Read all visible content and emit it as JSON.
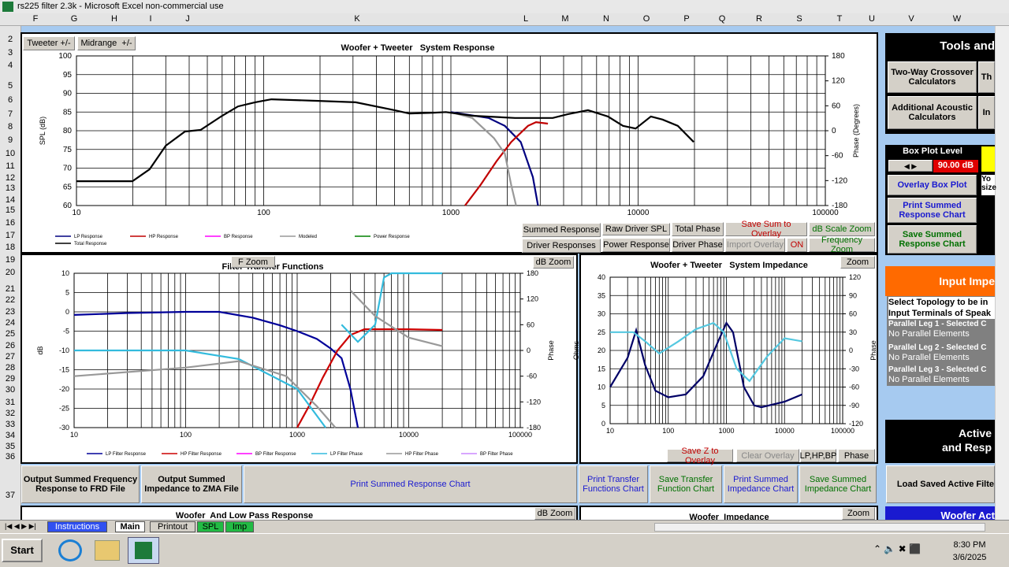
{
  "window": {
    "title": "rs225 filter  2.3k - Microsoft Excel non-commercial use"
  },
  "columns": [
    "F",
    "G",
    "H",
    "I",
    "J",
    "K",
    "L",
    "M",
    "N",
    "O",
    "P",
    "Q",
    "R",
    "S",
    "T",
    "U",
    "V",
    "W"
  ],
  "rows": [
    "2",
    "3",
    "4",
    "5",
    "6",
    "7",
    "8",
    "9",
    "10",
    "11",
    "12",
    "13",
    "14",
    "15",
    "16",
    "17",
    "18",
    "19",
    "20",
    "21",
    "22",
    "23",
    "24",
    "25",
    "26",
    "27",
    "28",
    "29",
    "30",
    "31",
    "32",
    "33",
    "34",
    "35",
    "36",
    "37"
  ],
  "buttons": {
    "tweeter": "Tweeter +/-",
    "midrange": "Midrange  +/-",
    "summed_response": "Summed Response",
    "raw_driver_spl": "Raw Driver SPL",
    "total_phase": "Total Phase",
    "save_sum": "Save Sum to Overlay",
    "db_scale_zoom": "dB Scale Zoom",
    "driver_responses": "Driver Responses",
    "power_response": "Power Response",
    "driver_phase": "Driver Phase",
    "import_overlay": "Import Overlay",
    "on": "ON",
    "frequency_zoom": "Frequency Zoom",
    "f_zoom": "F Zoom",
    "db_zoom": "dB Zoom",
    "zoom": "Zoom",
    "save_z": "Save Z to Overlay",
    "clear_overlay": "Clear Overlay",
    "lphpbp": "LP,HP,BP",
    "phase": "Phase",
    "out_frd": "Output Summed Frequency Response to FRD File",
    "out_zma": "Output Summed Impedance to ZMA File",
    "print_summed": "Print Summed Response Chart",
    "print_transfer": "Print Transfer Functions Chart",
    "save_transfer": "Save Transfer Function Chart",
    "print_imp": "Print Summed Impedance Chart",
    "save_imp": "Save Summed Impedance Chart",
    "db_zoom2": "dB Zoom",
    "zoom2": "Zoom"
  },
  "lower_titles": {
    "woofer_lp": "Woofer  And Low Pass Response",
    "woofer_imp": "Woofer  Impedance"
  },
  "right_panel": {
    "tools": "Tools and",
    "two_way": "Two-Way Crossover Calculators",
    "th": "Th",
    "additional": "Additional Acoustic Calculators",
    "in": "In",
    "box_plot_level": "Box Plot Level",
    "box_value": "90.00 dB",
    "overlay_box": "Overlay Box Plot",
    "yo": "Yo",
    "size": "size",
    "print_summed": "Print Summed Response Chart",
    "save_summed": "Save Summed Response Chart",
    "input_imp": "Input Impe",
    "select_topology": "Select Topology to be in",
    "input_terminals": "Input Terminals of Speak",
    "leg1": "Parallel Leg 1 - Selected C",
    "leg1_value": "No Parallel Elements",
    "leg2": "Parallel Leg 2 - Selected C",
    "leg2_value": "No Parallel Elements",
    "leg3": "Parallel Leg 3 - Selected C",
    "leg3_value": "No Parallel Elements",
    "active": "Active",
    "and_resp": "and Resp",
    "load_active": "Load Saved Active Filte",
    "woofer_act": "Woofer Act"
  },
  "tabs": [
    "Instructions",
    "Main",
    "Printout",
    "SPL",
    "Imp"
  ],
  "taskbar": {
    "start": "Start",
    "time": "8:30 PM",
    "date": "3/6/2025"
  },
  "chart_data": [
    {
      "type": "line",
      "title": "Woofer + Tweeter   System Response",
      "ylabel": "SPL (dB)",
      "y2label": "Phase (Degrees)",
      "log_x": true,
      "grid": true,
      "xlim": [
        10,
        100000
      ],
      "xticks": [
        10,
        100,
        1000,
        10000,
        100000
      ],
      "ylim": [
        60,
        100
      ],
      "yticks": [
        60,
        65,
        70,
        75,
        80,
        85,
        90,
        95,
        100
      ],
      "y2lim": [
        -180,
        180
      ],
      "y2ticks": [
        -180,
        -120,
        -60,
        0,
        60,
        120,
        180
      ],
      "series": [
        {
          "name": "LP Response",
          "color": "#000080",
          "x": [
            1000,
            1590,
            1940,
            2360,
            2740,
            2920
          ],
          "values": [
            85,
            83.4,
            81.3,
            77,
            67.6,
            60
          ]
        },
        {
          "name": "HP Response",
          "color": "#c00000",
          "x": [
            1190,
            1440,
            1750,
            2100,
            2580,
            2850,
            3300
          ],
          "values": [
            60,
            65.5,
            71.8,
            77,
            81.3,
            82.3,
            81.9
          ]
        },
        {
          "name": "BP Response",
          "color": "#ff00ff",
          "x": [],
          "values": []
        },
        {
          "name": "Modeled",
          "color": "#999999",
          "x": [
            1030,
            1300,
            1700,
            1940,
            2100,
            2230
          ],
          "values": [
            84.8,
            83.4,
            78,
            73.9,
            65.5,
            60
          ]
        },
        {
          "name": "Power Response",
          "color": "#008000",
          "x": [],
          "values": []
        },
        {
          "name": "Total Response",
          "color": "#000000",
          "x": [
            10,
            19.9,
            24.6,
            30,
            38,
            46,
            60,
            73,
            90,
            110,
            190,
            310,
            500,
            600,
            810,
            940,
            1300,
            2200,
            3500,
            4200,
            5400,
            6900,
            8300,
            9700,
            11700,
            13500,
            16300,
            19800
          ],
          "values": [
            66.5,
            66.5,
            69.7,
            76,
            79.8,
            80.2,
            84,
            86.5,
            87.6,
            88.4,
            88,
            87.6,
            85.5,
            84.6,
            84.8,
            85,
            84,
            83.4,
            83.4,
            84.4,
            85.5,
            83.8,
            81.3,
            80.6,
            83.8,
            83,
            81.3,
            77
          ]
        }
      ]
    },
    {
      "type": "line",
      "title": "Filter Transfer Functions",
      "ylabel": "dB",
      "y2label": "Phase",
      "log_x": true,
      "grid": true,
      "xlim": [
        10,
        100000
      ],
      "xticks": [
        10,
        100,
        1000,
        10000,
        100000
      ],
      "ylim": [
        -30,
        10
      ],
      "yticks": [
        -30,
        -25,
        -20,
        -15,
        -10,
        -5,
        0,
        5,
        10
      ],
      "y2lim": [
        -180,
        180
      ],
      "y2ticks": [
        -180,
        -120,
        -60,
        0,
        60,
        120,
        180
      ],
      "series": [
        {
          "name": "LP Filter Response",
          "color": "#000099",
          "x": [
            10,
            30,
            100,
            200,
            400,
            700,
            1000,
            1500,
            2000,
            2500,
            3000,
            3500
          ],
          "values": [
            -0.8,
            -0.3,
            0,
            0,
            -1.5,
            -3.5,
            -5,
            -7,
            -9.5,
            -12,
            -20,
            -30
          ]
        },
        {
          "name": "HP Filter Response",
          "color": "#cc0000",
          "x": [
            1000,
            1300,
            1700,
            2300,
            3000,
            4000,
            10000,
            20000
          ],
          "values": [
            -30,
            -24,
            -17,
            -10,
            -6,
            -4.5,
            -4.5,
            -4.7
          ]
        },
        {
          "name": "BP Filter Response",
          "color": "#ff00ff",
          "x": [],
          "values": []
        },
        {
          "name": "LP Filter Phase",
          "color": "#33bbdd",
          "axis": "y2",
          "x": [
            10,
            100,
            300,
            1000,
            1800,
            1800,
            2500,
            3500,
            5000,
            6000,
            7000,
            20000
          ],
          "values": [
            0,
            0,
            -20,
            -90,
            -180,
            null,
            60,
            20,
            60,
            170,
            180,
            180
          ]
        },
        {
          "name": "HP Filter Phase",
          "color": "#999999",
          "axis": "y2",
          "x": [
            10,
            100,
            300,
            800,
            1500,
            2200,
            2200,
            3000,
            5000,
            10000,
            20000
          ],
          "values": [
            -60,
            -40,
            -25,
            -60,
            -130,
            -180,
            null,
            140,
            80,
            30,
            10
          ]
        },
        {
          "name": "BP Filter Phase",
          "color": "#cc88ff",
          "axis": "y2",
          "x": [],
          "values": []
        }
      ]
    },
    {
      "type": "line",
      "title": "Woofer + Tweeter   System Impedance",
      "ylabel": "Ohms",
      "y2label": "Phase",
      "log_x": true,
      "grid": true,
      "xlim": [
        10,
        100000
      ],
      "xticks": [
        10,
        100,
        1000,
        10000,
        100000
      ],
      "ylim": [
        0,
        40
      ],
      "yticks": [
        0,
        5,
        10,
        15,
        20,
        25,
        30,
        35,
        40
      ],
      "y2lim": [
        -120,
        120
      ],
      "y2ticks": [
        -120,
        -90,
        -60,
        -30,
        0,
        30,
        60,
        90,
        120
      ],
      "series": [
        {
          "color": "#000066",
          "x": [
            10,
            20,
            28,
            40,
            60,
            100,
            200,
            400,
            700,
            1000,
            1300,
            2000,
            3000,
            4000,
            10000,
            20000
          ],
          "values": [
            10,
            18,
            25.5,
            16,
            9,
            7.2,
            8,
            13,
            22,
            27.5,
            25,
            10,
            5,
            4.5,
            6,
            8
          ]
        },
        {
          "color": "#55c8e0",
          "axis": "y2",
          "x": [
            10,
            25,
            40,
            70,
            150,
            300,
            600,
            900,
            1500,
            2500,
            5000,
            10000,
            20000
          ],
          "values": [
            30,
            30,
            15,
            -5,
            15,
            35,
            45,
            30,
            -30,
            -50,
            -10,
            20,
            15
          ]
        }
      ]
    }
  ]
}
